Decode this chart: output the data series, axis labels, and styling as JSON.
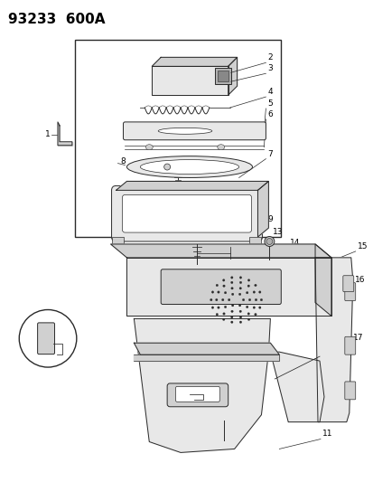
{
  "title": "93233  600A",
  "bg_color": "#ffffff",
  "title_fontsize": 11,
  "fig_width": 4.14,
  "fig_height": 5.33,
  "dpi": 100,
  "line_color": "#2a2a2a",
  "fill_light": "#e8e8e8",
  "fill_mid": "#d0d0d0",
  "fill_dark": "#b0b0b0"
}
